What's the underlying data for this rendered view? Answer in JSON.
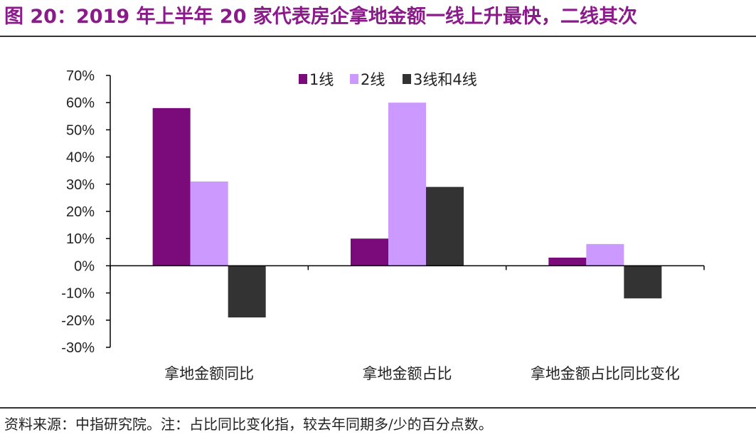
{
  "page": {
    "title": "图 20：2019 年上半年 20 家代表房企拿地金额一线上升最快，二线其次",
    "source": "资料来源：中指研究院。注：占比同比变化指，较去年同期多/少的百分点数。"
  },
  "colors": {
    "title": "#8b1a8b",
    "series_1": "#7b0a7b",
    "series_2": "#cc99ff",
    "series_3": "#333333"
  },
  "chart_data": {
    "type": "bar",
    "categories": [
      "拿地金额同比",
      "拿地金额占比",
      "拿地金额占比同比变化"
    ],
    "series": [
      {
        "name": "1线",
        "values": [
          0.58,
          0.1,
          0.03
        ]
      },
      {
        "name": "2线",
        "values": [
          0.31,
          0.6,
          0.08
        ]
      },
      {
        "name": "3线和4线",
        "values": [
          -0.19,
          0.29,
          -0.12
        ]
      }
    ],
    "ylim": [
      -0.3,
      0.7
    ],
    "yticks": [
      0.7,
      0.6,
      0.5,
      0.4,
      0.3,
      0.2,
      0.1,
      0,
      -0.1,
      -0.2,
      -0.3
    ],
    "ytick_labels": [
      "70%",
      "60%",
      "50%",
      "40%",
      "30%",
      "20%",
      "10%",
      "0%",
      "-10%",
      "-20%",
      "-30%"
    ],
    "legend_position": "top-center",
    "grid": false
  }
}
